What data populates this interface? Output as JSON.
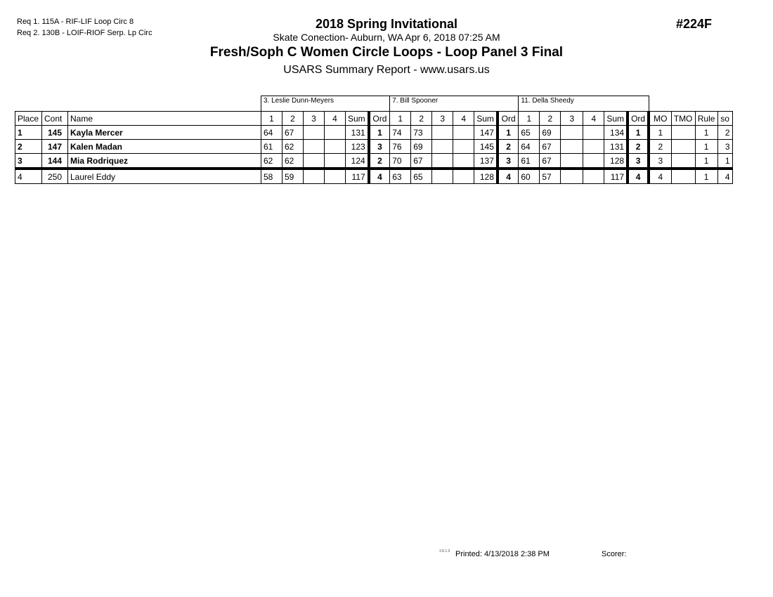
{
  "header": {
    "requirements": [
      "Req  1.  115A - RIF-LIF Loop Circ 8",
      "Req  2.  130B - LOIF-RIOF Serp. Lp Circ"
    ],
    "title": "2018 Spring Invitational",
    "subtitle": "Skate Conection- Auburn, WA  Apr 6, 2018  07:25 AM",
    "event": "Fresh/Soph C Women Circle Loops - Loop Panel 3 Final",
    "report": "USARS Summary Report - www.usars.us",
    "event_number": "#224F"
  },
  "judges": [
    "3.  Leslie Dunn-Meyers",
    "7.  Bill Spooner",
    "11.  Della Sheedy"
  ],
  "columns": {
    "place": "Place",
    "cont": "Cont",
    "name": "Name",
    "scores": [
      "1",
      "2",
      "3",
      "4"
    ],
    "sum": "Sum",
    "ord": "Ord",
    "mo": "MO",
    "tmo": "TMO",
    "rule": "Rule",
    "so": "so"
  },
  "rows": [
    {
      "place": "1",
      "cont": "145",
      "name": "Kayla Mercer",
      "bold": true,
      "judges": [
        {
          "s": [
            "64",
            "67",
            "",
            ""
          ],
          "sum": "131",
          "ord": "1"
        },
        {
          "s": [
            "74",
            "73",
            "",
            ""
          ],
          "sum": "147",
          "ord": "1"
        },
        {
          "s": [
            "65",
            "69",
            "",
            ""
          ],
          "sum": "134",
          "ord": "1"
        }
      ],
      "mo": "1",
      "tmo": "",
      "rule": "1",
      "so": "2"
    },
    {
      "place": "2",
      "cont": "147",
      "name": "Kalen Madan",
      "bold": true,
      "judges": [
        {
          "s": [
            "61",
            "62",
            "",
            ""
          ],
          "sum": "123",
          "ord": "3"
        },
        {
          "s": [
            "76",
            "69",
            "",
            ""
          ],
          "sum": "145",
          "ord": "2"
        },
        {
          "s": [
            "64",
            "67",
            "",
            ""
          ],
          "sum": "131",
          "ord": "2"
        }
      ],
      "mo": "2",
      "tmo": "",
      "rule": "1",
      "so": "3"
    },
    {
      "place": "3",
      "cont": "144",
      "name": "Mia Rodriquez",
      "bold": true,
      "judges": [
        {
          "s": [
            "62",
            "62",
            "",
            ""
          ],
          "sum": "124",
          "ord": "2"
        },
        {
          "s": [
            "70",
            "67",
            "",
            ""
          ],
          "sum": "137",
          "ord": "3"
        },
        {
          "s": [
            "61",
            "67",
            "",
            ""
          ],
          "sum": "128",
          "ord": "3"
        }
      ],
      "mo": "3",
      "tmo": "",
      "rule": "1",
      "so": "1"
    },
    {
      "place": "4",
      "cont": "250",
      "name": "Laurel Eddy",
      "bold": false,
      "judges": [
        {
          "s": [
            "58",
            "59",
            "",
            ""
          ],
          "sum": "117",
          "ord": "4"
        },
        {
          "s": [
            "63",
            "65",
            "",
            ""
          ],
          "sum": "128",
          "ord": "4"
        },
        {
          "s": [
            "60",
            "57",
            "",
            ""
          ],
          "sum": "117",
          "ord": "4"
        }
      ],
      "mo": "4",
      "tmo": "",
      "rule": "1",
      "so": "4"
    }
  ],
  "footer": {
    "version": "3.8.1.9",
    "printed": "Printed:  4/13/2018  2:38 PM",
    "scorer": "Scorer:"
  }
}
